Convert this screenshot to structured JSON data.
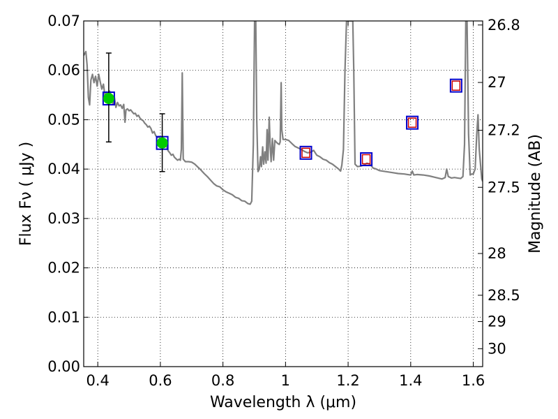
{
  "chart_data": {
    "type": "scatter",
    "xlabel": "Wavelength  λ (μm)",
    "ylabel": "Flux  Fν  ( μJy )",
    "ylabel2": "Magnitude (AB)",
    "xlim": [
      0.355,
      1.63
    ],
    "ylim": [
      0.0,
      0.07
    ],
    "grid": true,
    "x_ticks": [
      {
        "value": 0.4,
        "label": "0.4"
      },
      {
        "value": 0.6,
        "label": "0.6"
      },
      {
        "value": 0.8,
        "label": "0.8"
      },
      {
        "value": 1.0,
        "label": "1"
      },
      {
        "value": 1.2,
        "label": "1.2"
      },
      {
        "value": 1.4,
        "label": "1.4"
      },
      {
        "value": 1.6,
        "label": "1.6"
      }
    ],
    "y_ticks": [
      {
        "value": 0.0,
        "label": "0.00"
      },
      {
        "value": 0.01,
        "label": "0.01"
      },
      {
        "value": 0.02,
        "label": "0.02"
      },
      {
        "value": 0.03,
        "label": "0.03"
      },
      {
        "value": 0.04,
        "label": "0.04"
      },
      {
        "value": 0.05,
        "label": "0.05"
      },
      {
        "value": 0.06,
        "label": "0.06"
      },
      {
        "value": 0.07,
        "label": "0.07"
      }
    ],
    "right_ticks": [
      {
        "mag": 26.8,
        "label": "26.8"
      },
      {
        "mag": 27.0,
        "label": "27"
      },
      {
        "mag": 27.2,
        "label": "27.2"
      },
      {
        "mag": 27.5,
        "label": "27.5"
      },
      {
        "mag": 28.0,
        "label": "28"
      },
      {
        "mag": 28.5,
        "label": "28.5"
      },
      {
        "mag": 29.0,
        "label": "29"
      },
      {
        "mag": 30.0,
        "label": "30"
      }
    ],
    "observed_points": [
      {
        "x": 0.435,
        "y": 0.0543,
        "err_low": 0.0455,
        "err_high": 0.0635
      },
      {
        "x": 0.606,
        "y": 0.0453,
        "err_low": 0.0395,
        "err_high": 0.0512
      }
    ],
    "model_blue_squares": [
      {
        "x": 0.435,
        "y": 0.0543
      },
      {
        "x": 0.606,
        "y": 0.0453
      },
      {
        "x": 1.065,
        "y": 0.0433
      },
      {
        "x": 1.258,
        "y": 0.042
      },
      {
        "x": 1.405,
        "y": 0.0494
      },
      {
        "x": 1.545,
        "y": 0.0569
      }
    ],
    "model_red_squares": [
      {
        "x": 1.065,
        "y": 0.0433
      },
      {
        "x": 1.258,
        "y": 0.042
      },
      {
        "x": 1.405,
        "y": 0.0494
      },
      {
        "x": 1.545,
        "y": 0.0569
      }
    ],
    "spectrum": [
      [
        0.355,
        0.063
      ],
      [
        0.362,
        0.0638
      ],
      [
        0.366,
        0.061
      ],
      [
        0.37,
        0.0545
      ],
      [
        0.374,
        0.053
      ],
      [
        0.378,
        0.058
      ],
      [
        0.383,
        0.0592
      ],
      [
        0.388,
        0.0575
      ],
      [
        0.393,
        0.0588
      ],
      [
        0.398,
        0.0568
      ],
      [
        0.403,
        0.0592
      ],
      [
        0.408,
        0.0576
      ],
      [
        0.413,
        0.0562
      ],
      [
        0.418,
        0.0572
      ],
      [
        0.423,
        0.0548
      ],
      [
        0.428,
        0.0556
      ],
      [
        0.433,
        0.0542
      ],
      [
        0.438,
        0.0558
      ],
      [
        0.443,
        0.0548
      ],
      [
        0.448,
        0.0532
      ],
      [
        0.453,
        0.0545
      ],
      [
        0.458,
        0.0525
      ],
      [
        0.463,
        0.0535
      ],
      [
        0.468,
        0.0528
      ],
      [
        0.473,
        0.053
      ],
      [
        0.478,
        0.0523
      ],
      [
        0.483,
        0.0531
      ],
      [
        0.487,
        0.0495
      ],
      [
        0.49,
        0.052
      ],
      [
        0.495,
        0.0522
      ],
      [
        0.5,
        0.0518
      ],
      [
        0.505,
        0.052
      ],
      [
        0.51,
        0.0516
      ],
      [
        0.515,
        0.0512
      ],
      [
        0.52,
        0.0513
      ],
      [
        0.525,
        0.0507
      ],
      [
        0.53,
        0.0509
      ],
      [
        0.535,
        0.0503
      ],
      [
        0.54,
        0.05
      ],
      [
        0.545,
        0.0498
      ],
      [
        0.55,
        0.0493
      ],
      [
        0.555,
        0.049
      ],
      [
        0.56,
        0.0485
      ],
      [
        0.565,
        0.0487
      ],
      [
        0.57,
        0.0482
      ],
      [
        0.575,
        0.0473
      ],
      [
        0.58,
        0.0476
      ],
      [
        0.585,
        0.0468
      ],
      [
        0.59,
        0.0464
      ],
      [
        0.595,
        0.0466
      ],
      [
        0.6,
        0.046
      ],
      [
        0.605,
        0.0455
      ],
      [
        0.61,
        0.0456
      ],
      [
        0.615,
        0.0449
      ],
      [
        0.62,
        0.0446
      ],
      [
        0.625,
        0.0437
      ],
      [
        0.63,
        0.0433
      ],
      [
        0.635,
        0.0428
      ],
      [
        0.64,
        0.043
      ],
      [
        0.645,
        0.0424
      ],
      [
        0.65,
        0.0421
      ],
      [
        0.655,
        0.0418
      ],
      [
        0.66,
        0.042
      ],
      [
        0.664,
        0.0418
      ],
      [
        0.667,
        0.044
      ],
      [
        0.67,
        0.0595
      ],
      [
        0.673,
        0.042
      ],
      [
        0.676,
        0.0418
      ],
      [
        0.68,
        0.0415
      ],
      [
        0.69,
        0.0415
      ],
      [
        0.7,
        0.0414
      ],
      [
        0.71,
        0.041
      ],
      [
        0.72,
        0.0404
      ],
      [
        0.73,
        0.0398
      ],
      [
        0.74,
        0.0391
      ],
      [
        0.75,
        0.0385
      ],
      [
        0.76,
        0.0378
      ],
      [
        0.77,
        0.0371
      ],
      [
        0.78,
        0.0366
      ],
      [
        0.79,
        0.0364
      ],
      [
        0.8,
        0.0358
      ],
      [
        0.81,
        0.0354
      ],
      [
        0.82,
        0.0351
      ],
      [
        0.83,
        0.0348
      ],
      [
        0.84,
        0.0343
      ],
      [
        0.85,
        0.0341
      ],
      [
        0.86,
        0.0336
      ],
      [
        0.87,
        0.0335
      ],
      [
        0.88,
        0.033
      ],
      [
        0.887,
        0.0329
      ],
      [
        0.892,
        0.0335
      ],
      [
        0.897,
        0.045
      ],
      [
        0.901,
        0.07
      ],
      [
        0.905,
        0.07
      ],
      [
        0.908,
        0.05
      ],
      [
        0.912,
        0.0395
      ],
      [
        0.916,
        0.04
      ],
      [
        0.92,
        0.0425
      ],
      [
        0.923,
        0.0405
      ],
      [
        0.927,
        0.0445
      ],
      [
        0.93,
        0.041
      ],
      [
        0.934,
        0.0435
      ],
      [
        0.938,
        0.0412
      ],
      [
        0.941,
        0.048
      ],
      [
        0.944,
        0.0418
      ],
      [
        0.948,
        0.0505
      ],
      [
        0.951,
        0.0445
      ],
      [
        0.954,
        0.0415
      ],
      [
        0.958,
        0.0462
      ],
      [
        0.962,
        0.0418
      ],
      [
        0.966,
        0.0458
      ],
      [
        0.97,
        0.0455
      ],
      [
        0.975,
        0.0452
      ],
      [
        0.98,
        0.045
      ],
      [
        0.983,
        0.0455
      ],
      [
        0.986,
        0.0575
      ],
      [
        0.988,
        0.048
      ],
      [
        0.992,
        0.046
      ],
      [
        1.0,
        0.046
      ],
      [
        1.01,
        0.0458
      ],
      [
        1.02,
        0.0452
      ],
      [
        1.03,
        0.0446
      ],
      [
        1.04,
        0.0443
      ],
      [
        1.05,
        0.044
      ],
      [
        1.06,
        0.0436
      ],
      [
        1.07,
        0.0433
      ],
      [
        1.08,
        0.0434
      ],
      [
        1.09,
        0.0438
      ],
      [
        1.1,
        0.0428
      ],
      [
        1.11,
        0.0425
      ],
      [
        1.12,
        0.042
      ],
      [
        1.13,
        0.0418
      ],
      [
        1.14,
        0.0413
      ],
      [
        1.15,
        0.041
      ],
      [
        1.16,
        0.0405
      ],
      [
        1.17,
        0.04
      ],
      [
        1.176,
        0.0396
      ],
      [
        1.18,
        0.0408
      ],
      [
        1.185,
        0.044
      ],
      [
        1.19,
        0.06
      ],
      [
        1.195,
        0.07
      ],
      [
        1.215,
        0.07
      ],
      [
        1.218,
        0.06
      ],
      [
        1.222,
        0.041
      ],
      [
        1.23,
        0.0405
      ],
      [
        1.24,
        0.0406
      ],
      [
        1.25,
        0.0408
      ],
      [
        1.26,
        0.0412
      ],
      [
        1.27,
        0.041
      ],
      [
        1.28,
        0.0402
      ],
      [
        1.29,
        0.04
      ],
      [
        1.3,
        0.0397
      ],
      [
        1.32,
        0.0395
      ],
      [
        1.34,
        0.0393
      ],
      [
        1.36,
        0.0391
      ],
      [
        1.38,
        0.039
      ],
      [
        1.39,
        0.0389
      ],
      [
        1.4,
        0.0388
      ],
      [
        1.405,
        0.0396
      ],
      [
        1.41,
        0.0388
      ],
      [
        1.42,
        0.0389
      ],
      [
        1.44,
        0.0388
      ],
      [
        1.46,
        0.0386
      ],
      [
        1.48,
        0.0383
      ],
      [
        1.5,
        0.038
      ],
      [
        1.51,
        0.0383
      ],
      [
        1.515,
        0.04
      ],
      [
        1.52,
        0.0385
      ],
      [
        1.53,
        0.0382
      ],
      [
        1.54,
        0.0383
      ],
      [
        1.55,
        0.0382
      ],
      [
        1.56,
        0.0381
      ],
      [
        1.567,
        0.0385
      ],
      [
        1.572,
        0.045
      ],
      [
        1.576,
        0.07
      ],
      [
        1.58,
        0.07
      ],
      [
        1.585,
        0.047
      ],
      [
        1.59,
        0.0388
      ],
      [
        1.595,
        0.039
      ],
      [
        1.6,
        0.039
      ],
      [
        1.606,
        0.04
      ],
      [
        1.611,
        0.047
      ],
      [
        1.615,
        0.051
      ],
      [
        1.619,
        0.044
      ],
      [
        1.623,
        0.041
      ],
      [
        1.627,
        0.038
      ],
      [
        1.63,
        0.0375
      ]
    ],
    "colors": {
      "spectrum": "#808080",
      "observed_fill": "#00cc00",
      "errorbar": "#000000",
      "blue_square": "#0000cc",
      "red_square": "#cc0000",
      "grid": "#000000",
      "axes": "#000000"
    }
  }
}
